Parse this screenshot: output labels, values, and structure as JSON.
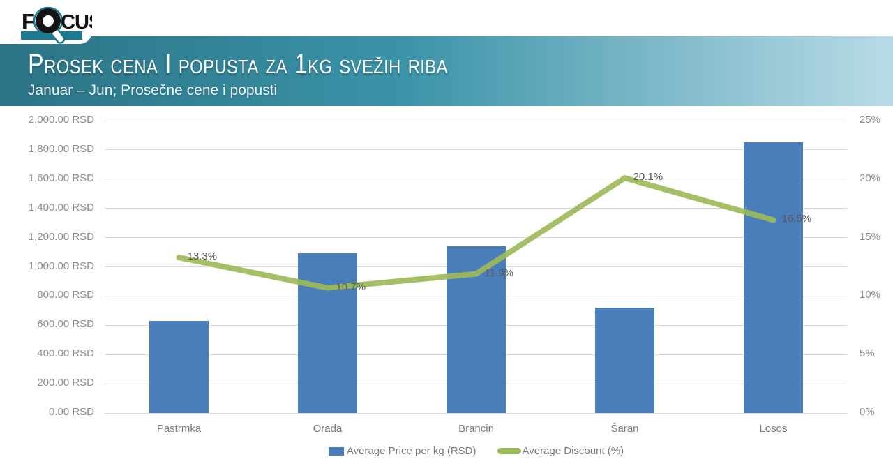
{
  "logo": {
    "text": "FOCUS",
    "part_f": "F",
    "part_cus": "CUS",
    "teal": "#1b7a90",
    "black": "#141414"
  },
  "header": {
    "title": "Prosek cena I popusta za 1kg svežih riba",
    "subtitle": "Januar – Jun; Prosečne cene i popusti",
    "gradient_start": "#2b7386",
    "gradient_mid": "#3b93a8",
    "gradient_end": "#b9dbe7"
  },
  "chart_data": {
    "type": "bar",
    "subtype": "combo bar + line, dual axis",
    "categories": [
      "Pastrmka",
      "Orada",
      "Brancin",
      "Šaran",
      "Losos"
    ],
    "series": [
      {
        "name": "Average Price per kg (RSD)",
        "type": "bar",
        "axis": "left",
        "color": "#4a7eba",
        "values": [
          630,
          1095,
          1140,
          720,
          1850
        ]
      },
      {
        "name": "Average Discount (%)",
        "type": "line",
        "axis": "right",
        "color": "#9cba59",
        "values": [
          13.3,
          10.7,
          11.9,
          20.1,
          16.5
        ],
        "data_labels": [
          "13.3%",
          "10.7%",
          "11.9%",
          "20.1%",
          "16.5%"
        ]
      }
    ],
    "left_axis": {
      "min": 0,
      "max": 2000,
      "step": 200,
      "tick_labels": [
        "0.00 RSD",
        "200.00 RSD",
        "400.00 RSD",
        "600.00 RSD",
        "800.00 RSD",
        "1,000.00 RSD",
        "1,200.00 RSD",
        "1,400.00 RSD",
        "1,600.00 RSD",
        "1,800.00 RSD",
        "2,000.00 RSD"
      ]
    },
    "right_axis": {
      "min": 0,
      "max": 25,
      "step": 5,
      "tick_labels": [
        "0%",
        "5%",
        "10%",
        "15%",
        "20%",
        "25%"
      ]
    },
    "grid": "horizontal only",
    "gridline_color": "#d9d9d9",
    "tick_color": "#8c8c8c",
    "data_label_color": "#595959",
    "legend_position": "bottom"
  }
}
